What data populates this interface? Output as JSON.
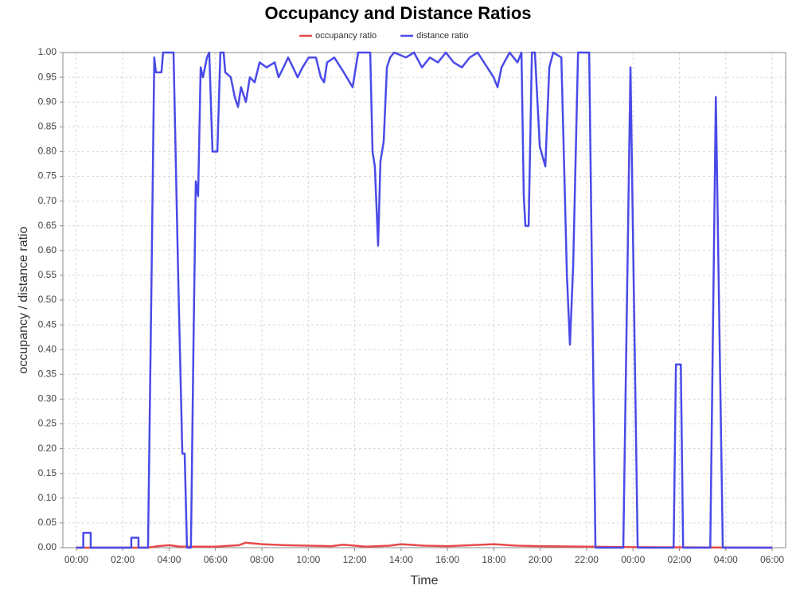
{
  "chart_data": {
    "type": "line",
    "title": "Occupancy and Distance Ratios",
    "x_label": "Time",
    "y_label": "occupancy / distance ratio",
    "xlim": [
      -0.58,
      30.58
    ],
    "ylim": [
      0,
      1
    ],
    "grid": true,
    "legend": "top",
    "xticks": [
      {
        "value": 0,
        "label": "00:00"
      },
      {
        "value": 2,
        "label": "02:00"
      },
      {
        "value": 4,
        "label": "04:00"
      },
      {
        "value": 6,
        "label": "06:00"
      },
      {
        "value": 8,
        "label": "08:00"
      },
      {
        "value": 10,
        "label": "10:00"
      },
      {
        "value": 12,
        "label": "12:00"
      },
      {
        "value": 14,
        "label": "14:00"
      },
      {
        "value": 16,
        "label": "16:00"
      },
      {
        "value": 18,
        "label": "18:00"
      },
      {
        "value": 20,
        "label": "20:00"
      },
      {
        "value": 22,
        "label": "22:00"
      },
      {
        "value": 24,
        "label": "00:00"
      },
      {
        "value": 26,
        "label": "02:00"
      },
      {
        "value": 28,
        "label": "04:00"
      },
      {
        "value": 30,
        "label": "06:00"
      }
    ],
    "yticks": [
      {
        "value": 0,
        "label": "0.00"
      },
      {
        "value": 0.05,
        "label": "0.05"
      },
      {
        "value": 0.1,
        "label": "0.10"
      },
      {
        "value": 0.15,
        "label": "0.15"
      },
      {
        "value": 0.2,
        "label": "0.20"
      },
      {
        "value": 0.25,
        "label": "0.25"
      },
      {
        "value": 0.3,
        "label": "0.30"
      },
      {
        "value": 0.35,
        "label": "0.35"
      },
      {
        "value": 0.4,
        "label": "0.40"
      },
      {
        "value": 0.45,
        "label": "0.45"
      },
      {
        "value": 0.5,
        "label": "0.50"
      },
      {
        "value": 0.55,
        "label": "0.55"
      },
      {
        "value": 0.6,
        "label": "0.60"
      },
      {
        "value": 0.65,
        "label": "0.65"
      },
      {
        "value": 0.7,
        "label": "0.70"
      },
      {
        "value": 0.75,
        "label": "0.75"
      },
      {
        "value": 0.8,
        "label": "0.80"
      },
      {
        "value": 0.85,
        "label": "0.85"
      },
      {
        "value": 0.9,
        "label": "0.90"
      },
      {
        "value": 0.95,
        "label": "0.95"
      },
      {
        "value": 1,
        "label": "1.00"
      }
    ],
    "series": [
      {
        "name": "occupancy ratio",
        "color": "#e84a4a",
        "x": [
          0,
          3.1,
          3.5,
          4,
          4.5,
          6,
          7,
          7.3,
          8,
          9,
          10,
          11,
          11.5,
          12.5,
          13.5,
          14,
          15,
          16,
          17,
          18,
          19,
          20,
          22,
          24,
          30
        ],
        "values": [
          0,
          0,
          0.003,
          0.005,
          0.002,
          0.002,
          0.005,
          0.01,
          0.007,
          0.005,
          0.004,
          0.003,
          0.006,
          0.002,
          0.004,
          0.007,
          0.004,
          0.003,
          0.005,
          0.007,
          0.004,
          0.003,
          0.002,
          0.001,
          0
        ]
      },
      {
        "name": "distance ratio",
        "color": "#4a4ae8",
        "x": [
          0,
          0.3,
          0.3,
          0.62,
          0.62,
          2.37,
          2.37,
          2.68,
          2.68,
          3.09,
          3.23,
          3.36,
          3.43,
          3.67,
          3.74,
          4.19,
          4.39,
          4.57,
          4.67,
          4.77,
          4.94,
          5.05,
          5.15,
          5.25,
          5.36,
          5.46,
          5.63,
          5.73,
          5.87,
          6.08,
          6.21,
          6.35,
          6.42,
          6.66,
          6.83,
          6.97,
          7.1,
          7.31,
          7.48,
          7.69,
          7.9,
          8.2,
          8.55,
          8.72,
          8.93,
          9.13,
          9.34,
          9.54,
          9.75,
          10.02,
          10.33,
          10.54,
          10.68,
          10.81,
          11.12,
          11.53,
          11.91,
          12.15,
          12.67,
          12.77,
          12.87,
          13.01,
          13.11,
          13.25,
          13.39,
          13.53,
          13.7,
          14.21,
          14.56,
          14.9,
          15.24,
          15.59,
          15.93,
          16.27,
          16.62,
          16.96,
          17.3,
          17.99,
          18.16,
          18.33,
          18.68,
          19.02,
          19.19,
          19.29,
          19.36,
          19.5,
          19.64,
          19.77,
          19.98,
          20.22,
          20.39,
          20.56,
          20.91,
          21.15,
          21.28,
          21.42,
          21.63,
          22.11,
          22.38,
          23.58,
          23.89,
          24.2,
          25.75,
          25.85,
          26.06,
          26.16,
          27.33,
          27.57,
          27.87,
          30
        ],
        "values": [
          0,
          0,
          0.03,
          0.03,
          0,
          0,
          0.02,
          0.02,
          0,
          0,
          0.5,
          0.99,
          0.96,
          0.96,
          1,
          1,
          0.55,
          0.19,
          0.19,
          0,
          0,
          0.41,
          0.74,
          0.71,
          0.97,
          0.95,
          0.99,
          1,
          0.8,
          0.8,
          1,
          1,
          0.96,
          0.95,
          0.91,
          0.89,
          0.93,
          0.9,
          0.95,
          0.94,
          0.98,
          0.97,
          0.98,
          0.95,
          0.97,
          0.99,
          0.97,
          0.95,
          0.97,
          0.99,
          0.99,
          0.95,
          0.94,
          0.98,
          0.99,
          0.96,
          0.93,
          1,
          1,
          0.8,
          0.77,
          0.61,
          0.78,
          0.82,
          0.97,
          0.99,
          1,
          0.99,
          1,
          0.97,
          0.99,
          0.98,
          1,
          0.98,
          0.97,
          0.99,
          1,
          0.95,
          0.93,
          0.97,
          1,
          0.98,
          1,
          0.71,
          0.65,
          0.65,
          1,
          1,
          0.81,
          0.77,
          0.97,
          1,
          0.99,
          0.55,
          0.41,
          0.57,
          1,
          1,
          0,
          0,
          0.97,
          0,
          0,
          0.37,
          0.37,
          0,
          0,
          0.91,
          0,
          0
        ]
      }
    ]
  }
}
